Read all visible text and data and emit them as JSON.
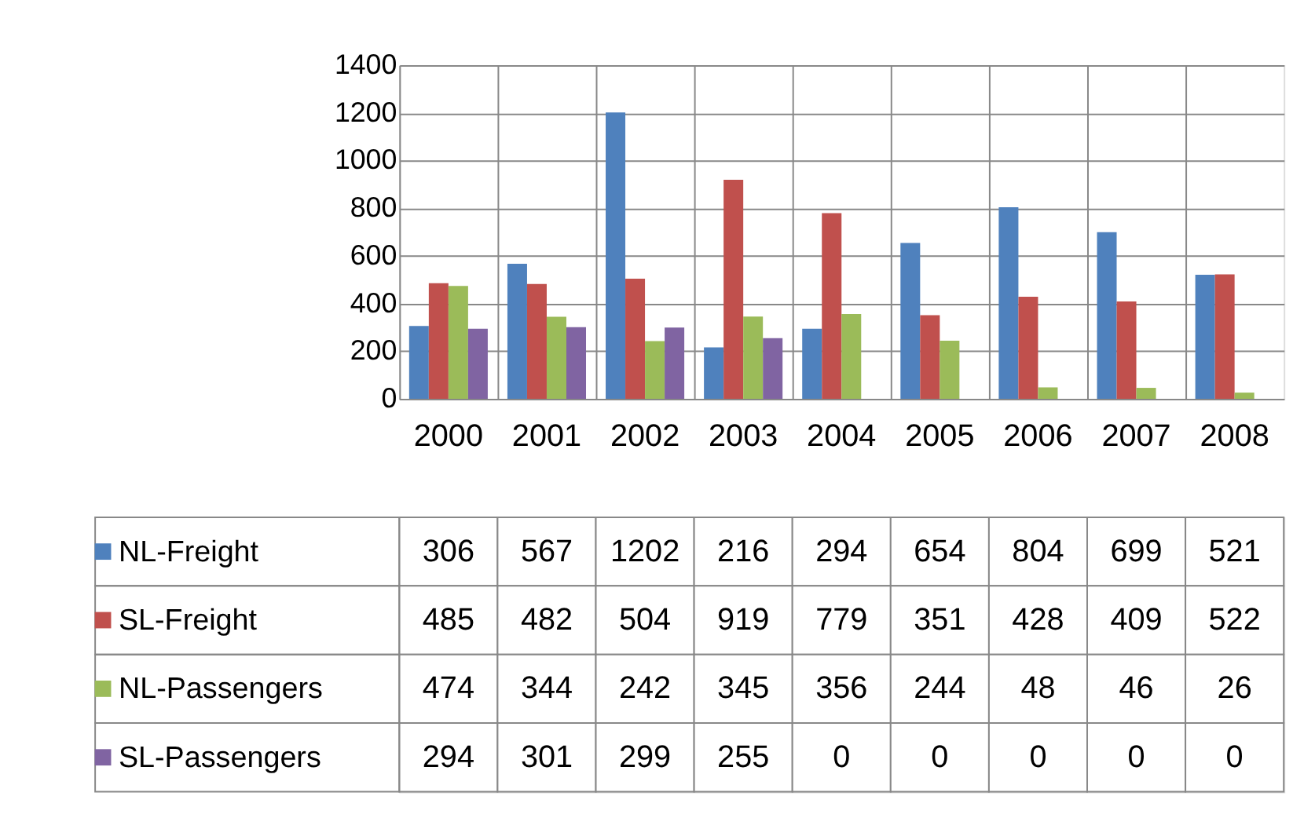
{
  "chart_data": {
    "type": "bar",
    "categories": [
      "2000",
      "2001",
      "2002",
      "2003",
      "2004",
      "2005",
      "2006",
      "2007",
      "2008"
    ],
    "series": [
      {
        "name": "NL-Freight",
        "color": "#4f81bd",
        "values": [
          306,
          567,
          1202,
          216,
          294,
          654,
          804,
          699,
          521
        ]
      },
      {
        "name": "SL-Freight",
        "color": "#c0504d",
        "values": [
          485,
          482,
          504,
          919,
          779,
          351,
          428,
          409,
          522
        ]
      },
      {
        "name": "NL-Passengers",
        "color": "#9bbb59",
        "values": [
          474,
          344,
          242,
          345,
          356,
          244,
          48,
          46,
          26
        ]
      },
      {
        "name": "SL-Passengers",
        "color": "#8064a2",
        "values": [
          294,
          301,
          299,
          255,
          0,
          0,
          0,
          0,
          0
        ]
      }
    ],
    "ylim": [
      0,
      1400
    ],
    "yticks": [
      0,
      200,
      400,
      600,
      800,
      1000,
      1200,
      1400
    ],
    "grid": true,
    "legend": "bottom left",
    "data_labels": true
  }
}
